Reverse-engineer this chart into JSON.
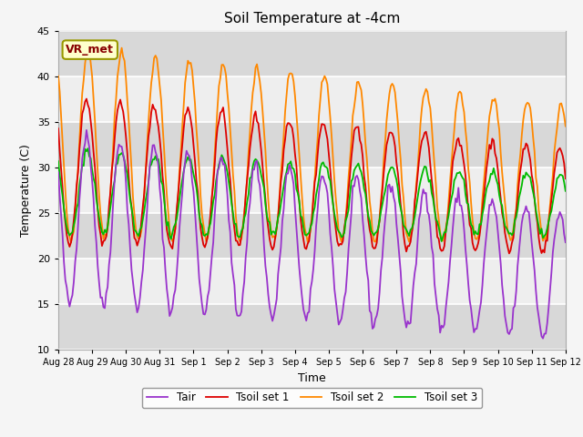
{
  "title": "Soil Temperature at -4cm",
  "xlabel": "Time",
  "ylabel": "Temperature (C)",
  "ylim": [
    10,
    45
  ],
  "legend_labels": [
    "Tair",
    "Tsoil set 1",
    "Tsoil set 2",
    "Tsoil set 3"
  ],
  "line_colors": [
    "#9933cc",
    "#dd0000",
    "#ff8800",
    "#00bb00"
  ],
  "annotation_text": "VR_met",
  "annotation_color": "#880000",
  "annotation_bg": "#ffffcc",
  "annotation_border": "#999900",
  "plot_bg": "#e8e8e8",
  "grid_color": "#ffffff",
  "tick_labels": [
    "Aug 28",
    "Aug 29",
    "Aug 30",
    "Aug 31",
    "Sep 1",
    "Sep 2",
    "Sep 3",
    "Sep 4",
    "Sep 5",
    "Sep 6",
    "Sep 7",
    "Sep 8",
    "Sep 9",
    "Sep 10",
    "Sep 11",
    "Sep 12"
  ],
  "yticks": [
    10,
    15,
    20,
    25,
    30,
    35,
    40,
    45
  ],
  "fig_facecolor": "#f5f5f5"
}
